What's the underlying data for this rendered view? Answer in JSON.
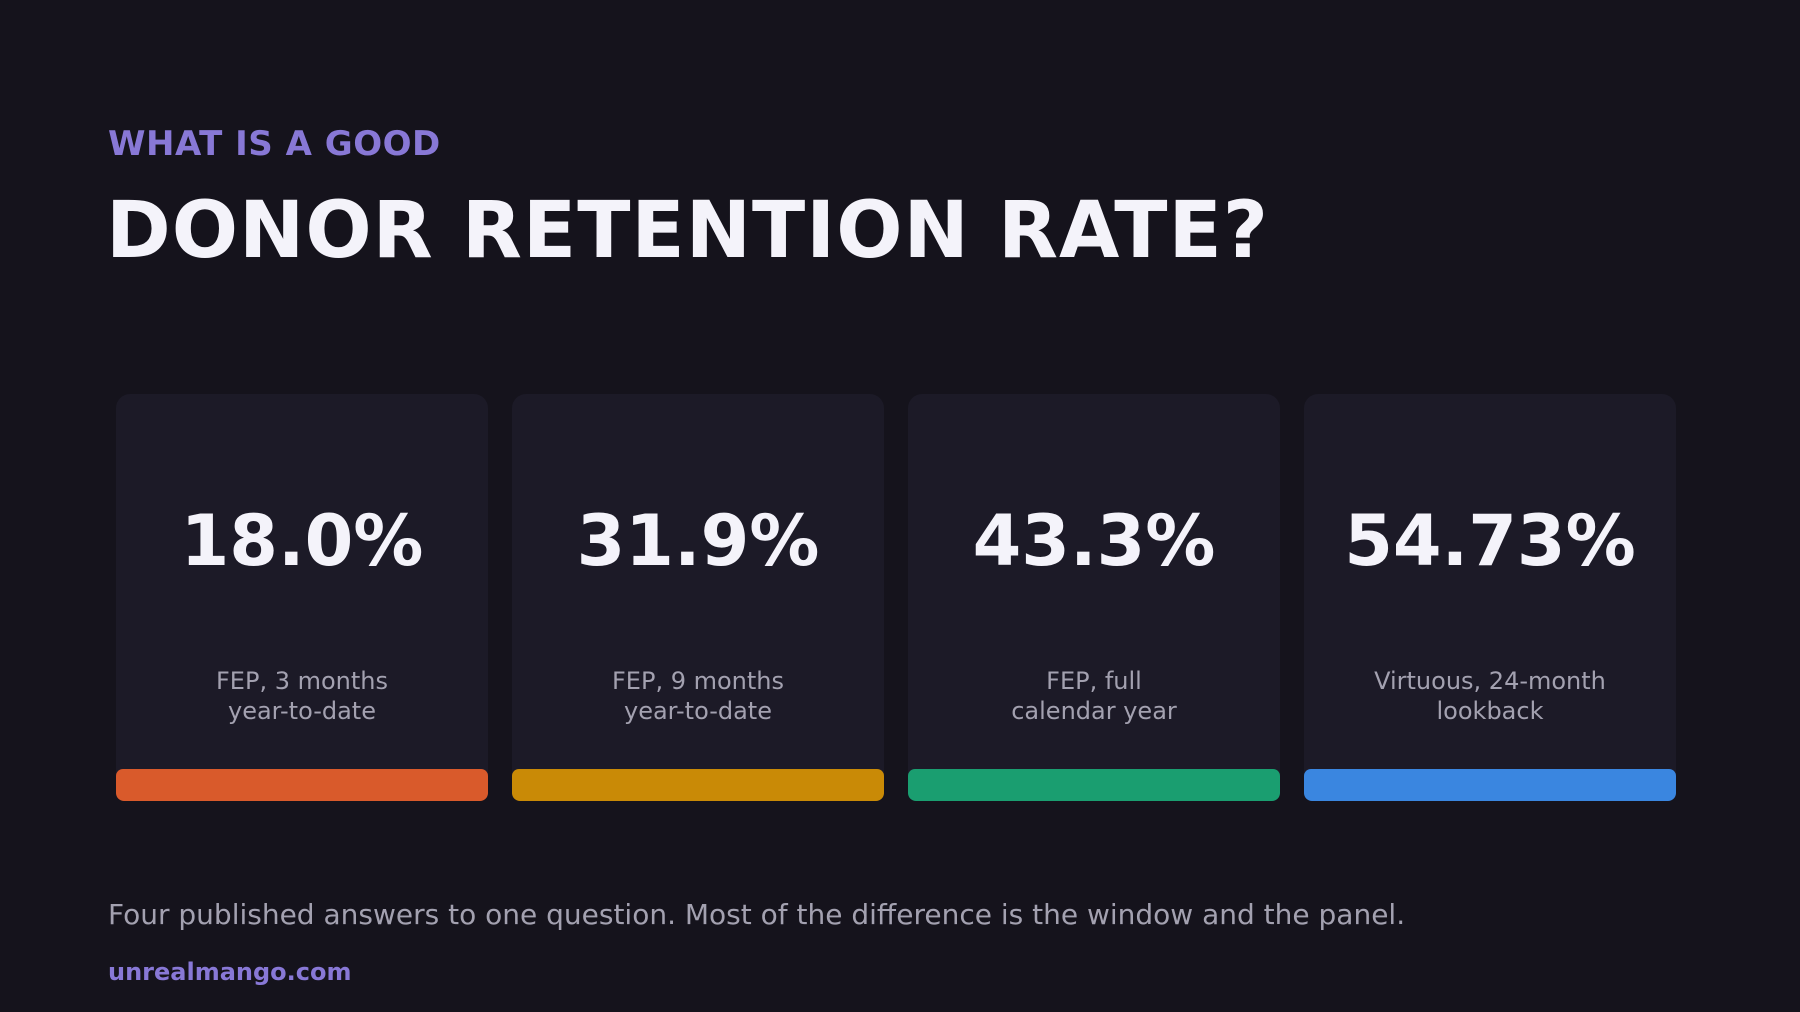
{
  "header": {
    "kicker": "WHAT IS A GOOD",
    "title": "DONOR RETENTION RATE?"
  },
  "cards": [
    {
      "value": "18.0%",
      "label": [
        "FEP, 3 months",
        "year-to-date"
      ],
      "color": "#d95a2b"
    },
    {
      "value": "31.9%",
      "label": [
        "FEP, 9 months",
        "year-to-date"
      ],
      "color": "#c98a06"
    },
    {
      "value": "43.3%",
      "label": [
        "FEP, full",
        "calendar year"
      ],
      "color": "#1a9e70"
    },
    {
      "value": "54.73%",
      "label": [
        "Virtuous, 24-month",
        "lookback"
      ],
      "color": "#3a86e0"
    }
  ],
  "footer": {
    "caption": "Four published answers to one question. Most of the difference is the window and the panel.",
    "site": "unrealmango.com"
  }
}
